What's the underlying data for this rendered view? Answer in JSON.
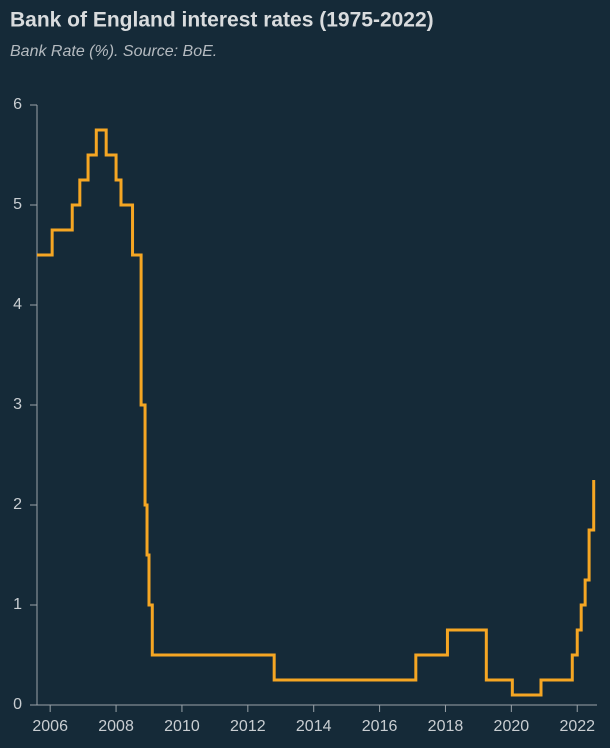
{
  "chart_data": {
    "type": "step",
    "title": "Bank of England interest rates (1975-2022)",
    "subtitle": "Bank Rate (%). Source: BoE.",
    "x": [
      2005.6,
      2006.06,
      2006.67,
      2006.9,
      2007.15,
      2007.4,
      2007.7,
      2008.0,
      2008.15,
      2008.5,
      2008.76,
      2008.88,
      2008.94,
      2009.0,
      2009.1,
      2012.8,
      2017.1,
      2018.06,
      2019.24,
      2020.03,
      2020.9,
      2021.85,
      2022.0,
      2022.12,
      2022.24,
      2022.36,
      2022.5
    ],
    "values": [
      4.5,
      4.75,
      5.0,
      5.25,
      5.5,
      5.75,
      5.5,
      5.25,
      5.0,
      4.5,
      3.0,
      2.0,
      1.5,
      1.0,
      0.5,
      0.25,
      0.5,
      0.75,
      0.25,
      0.1,
      0.25,
      0.5,
      0.75,
      1.0,
      1.25,
      1.75,
      2.25
    ],
    "color": "#f5a623",
    "xlim": [
      2005.6,
      2022.6
    ],
    "xticks": [
      2006,
      2008,
      2010,
      2012,
      2014,
      2016,
      2018,
      2020,
      2022
    ],
    "ylim": [
      0,
      6
    ],
    "yticks": [
      0,
      1,
      2,
      3,
      4,
      5,
      6
    ]
  }
}
